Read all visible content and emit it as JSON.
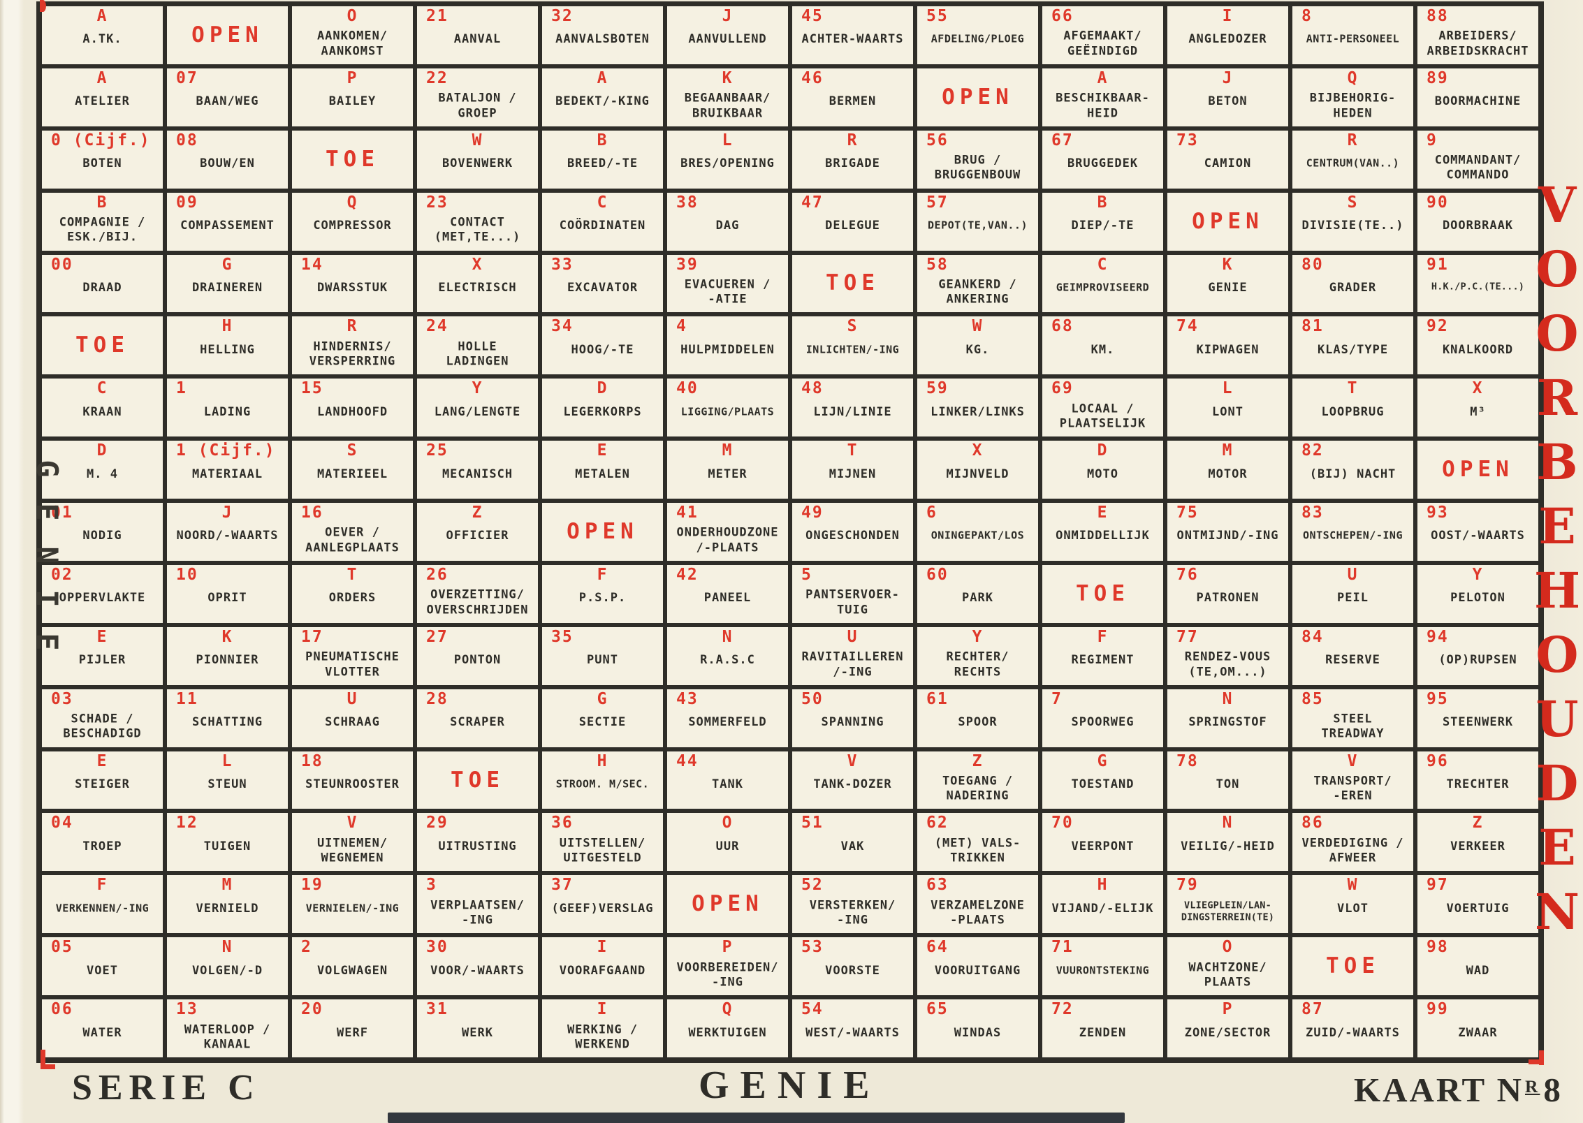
{
  "document": {
    "type_label": "code card",
    "footer": {
      "serie": "SERIE C",
      "title": "GENIE",
      "kaart_prefix": "KAART N",
      "kaart_sup": "R",
      "kaart_number": "8"
    },
    "left_margin_vertical": "GENIE",
    "right_margin_vertical": "VOORBEHOUDEN",
    "colors": {
      "paper": "#eee9d8",
      "cell": "#f5f1e2",
      "ink": "#2e2d28",
      "red": "#df382a",
      "red_deep": "#d42a1d",
      "bottom_band": "#33383e"
    }
  },
  "grid": {
    "columns": 12,
    "rows": [
      {
        "cells": [
          {
            "code": "A",
            "term": "A.TK."
          },
          {
            "special": "OPEN"
          },
          {
            "code": "O",
            "term": "AANKOMEN/\nAANKOMST"
          },
          {
            "code": "21",
            "term": "AANVAL"
          },
          {
            "code": "32",
            "term": "AANVALSBOTEN"
          },
          {
            "code": "J",
            "term": "AANVULLEND"
          },
          {
            "code": "45",
            "term": "ACHTER-WAARTS"
          },
          {
            "code": "55",
            "term": "AFDELING/PLOEG"
          },
          {
            "code": "66",
            "term": "AFGEMAAKT/\nGEËINDIGD"
          },
          {
            "code": "I",
            "term": "ANGLEDOZER"
          },
          {
            "code": "8",
            "term": "ANTI-PERSONEEL"
          },
          {
            "code": "88",
            "term": "ARBEIDERS/\nARBEIDSKRACHT"
          }
        ]
      },
      {
        "cells": [
          {
            "code": "A",
            "term": "ATELIER"
          },
          {
            "code": "07",
            "term": "BAAN/WEG"
          },
          {
            "code": "P",
            "term": "BAILEY"
          },
          {
            "code": "22",
            "term": "BATALJON /\nGROEP"
          },
          {
            "code": "A",
            "term": "BEDEKT/-KING"
          },
          {
            "code": "K",
            "term": "BEGAANBAAR/\nBRUIKBAAR"
          },
          {
            "code": "46",
            "term": "BERMEN"
          },
          {
            "special": "OPEN"
          },
          {
            "code": "A",
            "term": "BESCHIKBAAR-\nHEID"
          },
          {
            "code": "J",
            "term": "BETON"
          },
          {
            "code": "Q",
            "term": "BIJBEHORIG-\nHEDEN"
          },
          {
            "code": "89",
            "term": "BOORMACHINE"
          }
        ]
      },
      {
        "cells": [
          {
            "code": "0 (Cijf.)",
            "term": "BOTEN"
          },
          {
            "code": "08",
            "term": "BOUW/EN"
          },
          {
            "special": "TOE"
          },
          {
            "code": "W",
            "term": "BOVENWERK"
          },
          {
            "code": "B",
            "term": "BREED/-TE"
          },
          {
            "code": "L",
            "term": "BRES/OPENING"
          },
          {
            "code": "R",
            "term": "BRIGADE"
          },
          {
            "code": "56",
            "term": "BRUG /\nBRUGGENBOUW"
          },
          {
            "code": "67",
            "term": "BRUGGEDEK"
          },
          {
            "code": "73",
            "term": "CAMION"
          },
          {
            "code": "R",
            "term": "CENTRUM(VAN..)"
          },
          {
            "code": "9",
            "term": "COMMANDANT/\nCOMMANDO"
          }
        ]
      },
      {
        "cells": [
          {
            "code": "B",
            "term": "COMPAGNIE /\nESK./BIJ."
          },
          {
            "code": "09",
            "term": "COMPASSEMENT"
          },
          {
            "code": "Q",
            "term": "COMPRESSOR"
          },
          {
            "code": "23",
            "term": "CONTACT\n(MET,TE...)"
          },
          {
            "code": "C",
            "term": "COÖRDINATEN"
          },
          {
            "code": "38",
            "term": "DAG"
          },
          {
            "code": "47",
            "term": "DELEGUE"
          },
          {
            "code": "57",
            "term": "DEPOT(TE,VAN..)"
          },
          {
            "code": "B",
            "term": "DIEP/-TE"
          },
          {
            "special": "OPEN"
          },
          {
            "code": "S",
            "term": "DIVISIE(TE..)"
          },
          {
            "code": "90",
            "term": "DOORBRAAK"
          }
        ]
      },
      {
        "cells": [
          {
            "code": "00",
            "term": "DRAAD"
          },
          {
            "code": "G",
            "term": "DRAINEREN"
          },
          {
            "code": "14",
            "term": "DWARSSTUK"
          },
          {
            "code": "X",
            "term": "ELECTRISCH"
          },
          {
            "code": "33",
            "term": "EXCAVATOR"
          },
          {
            "code": "39",
            "term": "EVACUEREN /\n-ATIE"
          },
          {
            "special": "TOE"
          },
          {
            "code": "58",
            "term": "GEANKERD /\nANKERING"
          },
          {
            "code": "C",
            "term": "GEIMPROVISEERD"
          },
          {
            "code": "K",
            "term": "GENIE"
          },
          {
            "code": "80",
            "term": "GRADER"
          },
          {
            "code": "91",
            "term": "H.K./P.C.(TE...)"
          }
        ]
      },
      {
        "cells": [
          {
            "special": "TOE"
          },
          {
            "code": "H",
            "term": "HELLING"
          },
          {
            "code": "R",
            "term": "HINDERNIS/\nVERSPERRING"
          },
          {
            "code": "24",
            "term": "HOLLE\nLADINGEN"
          },
          {
            "code": "34",
            "term": "HOOG/-TE"
          },
          {
            "code": "4",
            "term": "HULPMIDDELEN"
          },
          {
            "code": "S",
            "term": "INLICHTEN/-ING"
          },
          {
            "code": "W",
            "term": "KG."
          },
          {
            "code": "68",
            "term": "KM."
          },
          {
            "code": "74",
            "term": "KIPWAGEN"
          },
          {
            "code": "81",
            "term": "KLAS/TYPE"
          },
          {
            "code": "92",
            "term": "KNALKOORD"
          }
        ]
      },
      {
        "cells": [
          {
            "code": "C",
            "term": "KRAAN"
          },
          {
            "code": "1",
            "term": "LADING"
          },
          {
            "code": "15",
            "term": "LANDHOOFD"
          },
          {
            "code": "Y",
            "term": "LANG/LENGTE"
          },
          {
            "code": "D",
            "term": "LEGERKORPS"
          },
          {
            "code": "40",
            "term": "LIGGING/PLAATS"
          },
          {
            "code": "48",
            "term": "LIJN/LINIE"
          },
          {
            "code": "59",
            "term": "LINKER/LINKS"
          },
          {
            "code": "69",
            "term": "LOCAAL /\nPLAATSELIJK"
          },
          {
            "code": "L",
            "term": "LONT"
          },
          {
            "code": "T",
            "term": "LOOPBRUG"
          },
          {
            "code": "X",
            "term": "M³"
          }
        ]
      },
      {
        "cells": [
          {
            "code": "D",
            "term": "M. 4"
          },
          {
            "code": "1 (Cijf.)",
            "term": "MATERIAAL"
          },
          {
            "code": "S",
            "term": "MATERIEEL"
          },
          {
            "code": "25",
            "term": "MECANISCH"
          },
          {
            "code": "E",
            "term": "METALEN"
          },
          {
            "code": "M",
            "term": "METER"
          },
          {
            "code": "T",
            "term": "MIJNEN"
          },
          {
            "code": "X",
            "term": "MIJNVELD"
          },
          {
            "code": "D",
            "term": "MOTO"
          },
          {
            "code": "M",
            "term": "MOTOR"
          },
          {
            "code": "82",
            "term": "(BIJ) NACHT"
          },
          {
            "special": "OPEN"
          }
        ]
      },
      {
        "cells": [
          {
            "code": "01",
            "term": "NODIG"
          },
          {
            "code": "J",
            "term": "NOORD/-WAARTS"
          },
          {
            "code": "16",
            "term": "OEVER /\nAANLEGPLAATS"
          },
          {
            "code": "Z",
            "term": "OFFICIER"
          },
          {
            "special": "OPEN"
          },
          {
            "code": "41",
            "term": "ONDERHOUDZONE\n/-PLAATS"
          },
          {
            "code": "49",
            "term": "ONGESCHONDEN"
          },
          {
            "code": "6",
            "term": "ONINGEPAKT/LOS"
          },
          {
            "code": "E",
            "term": "ONMIDDELLIJK"
          },
          {
            "code": "75",
            "term": "ONTMIJND/-ING"
          },
          {
            "code": "83",
            "term": "ONTSCHEPEN/-ING"
          },
          {
            "code": "93",
            "term": "OOST/-WAARTS"
          }
        ]
      },
      {
        "cells": [
          {
            "code": "02",
            "term": "OPPERVLAKTE"
          },
          {
            "code": "10",
            "term": "OPRIT"
          },
          {
            "code": "T",
            "term": "ORDERS"
          },
          {
            "code": "26",
            "term": "OVERZETTING/\nOVERSCHRIJDEN"
          },
          {
            "code": "F",
            "term": "P.S.P."
          },
          {
            "code": "42",
            "term": "PANEEL"
          },
          {
            "code": "5",
            "term": "PANTSERVOER-\nTUIG"
          },
          {
            "code": "60",
            "term": "PARK"
          },
          {
            "special": "TOE"
          },
          {
            "code": "76",
            "term": "PATRONEN"
          },
          {
            "code": "U",
            "term": "PEIL"
          },
          {
            "code": "Y",
            "term": "PELOTON"
          }
        ]
      },
      {
        "cells": [
          {
            "code": "E",
            "term": "PIJLER"
          },
          {
            "code": "K",
            "term": "PIONNIER"
          },
          {
            "code": "17",
            "term": "PNEUMATISCHE\nVLOTTER"
          },
          {
            "code": "27",
            "term": "PONTON"
          },
          {
            "code": "35",
            "term": "PUNT"
          },
          {
            "code": "N",
            "term": "R.A.S.C"
          },
          {
            "code": "U",
            "term": "RAVITAILLEREN\n/-ING"
          },
          {
            "code": "Y",
            "term": "RECHTER/\nRECHTS"
          },
          {
            "code": "F",
            "term": "REGIMENT"
          },
          {
            "code": "77",
            "term": "RENDEZ-VOUS\n(TE,OM...)"
          },
          {
            "code": "84",
            "term": "RESERVE"
          },
          {
            "code": "94",
            "term": "(OP)RUPSEN"
          }
        ]
      },
      {
        "cells": [
          {
            "code": "03",
            "term": "SCHADE /\nBESCHADIGD"
          },
          {
            "code": "11",
            "term": "SCHATTING"
          },
          {
            "code": "U",
            "term": "SCHRAAG"
          },
          {
            "code": "28",
            "term": "SCRAPER"
          },
          {
            "code": "G",
            "term": "SECTIE"
          },
          {
            "code": "43",
            "term": "SOMMERFELD"
          },
          {
            "code": "50",
            "term": "SPANNING"
          },
          {
            "code": "61",
            "term": "SPOOR"
          },
          {
            "code": "7",
            "term": "SPOORWEG"
          },
          {
            "code": "N",
            "term": "SPRINGSTOF"
          },
          {
            "code": "85",
            "term": "STEEL\nTREADWAY"
          },
          {
            "code": "95",
            "term": "STEENWERK"
          }
        ]
      },
      {
        "cells": [
          {
            "code": "E",
            "term": "STEIGER"
          },
          {
            "code": "L",
            "term": "STEUN"
          },
          {
            "code": "18",
            "term": "STEUNROOSTER"
          },
          {
            "special": "TOE"
          },
          {
            "code": "H",
            "term": "STROOM. M/SEC."
          },
          {
            "code": "44",
            "term": "TANK"
          },
          {
            "code": "V",
            "term": "TANK-DOZER"
          },
          {
            "code": "Z",
            "term": "TOEGANG /\nNADERING"
          },
          {
            "code": "G",
            "term": "TOESTAND"
          },
          {
            "code": "78",
            "term": "TON"
          },
          {
            "code": "V",
            "term": "TRANSPORT/\n-EREN"
          },
          {
            "code": "96",
            "term": "TRECHTER"
          }
        ]
      },
      {
        "cells": [
          {
            "code": "04",
            "term": "TROEP"
          },
          {
            "code": "12",
            "term": "TUIGEN"
          },
          {
            "code": "V",
            "term": "UITNEMEN/\nWEGNEMEN"
          },
          {
            "code": "29",
            "term": "UITRUSTING"
          },
          {
            "code": "36",
            "term": "UITSTELLEN/\nUITGESTELD"
          },
          {
            "code": "O",
            "term": "UUR"
          },
          {
            "code": "51",
            "term": "VAK"
          },
          {
            "code": "62",
            "term": "(MET) VALS-\nTRIKKEN"
          },
          {
            "code": "70",
            "term": "VEERPONT"
          },
          {
            "code": "N",
            "term": "VEILIG/-HEID"
          },
          {
            "code": "86",
            "term": "VERDEDIGING /\nAFWEER"
          },
          {
            "code": "Z",
            "term": "VERKEER"
          }
        ]
      },
      {
        "cells": [
          {
            "code": "F",
            "term": "VERKENNEN/-ING"
          },
          {
            "code": "M",
            "term": "VERNIELD"
          },
          {
            "code": "19",
            "term": "VERNIELEN/-ING"
          },
          {
            "code": "3",
            "term": "VERPLAATSEN/\n-ING"
          },
          {
            "code": "37",
            "term": "(GEEF)VERSLAG"
          },
          {
            "special": "OPEN"
          },
          {
            "code": "52",
            "term": "VERSTERKEN/\n-ING"
          },
          {
            "code": "63",
            "term": "VERZAMELZONE\n-PLAATS"
          },
          {
            "code": "H",
            "term": "VIJAND/-ELIJK"
          },
          {
            "code": "79",
            "term": "VLIEGPLEIN/LAN-\nDINGSTERREIN(TE)"
          },
          {
            "code": "W",
            "term": "VLOT"
          },
          {
            "code": "97",
            "term": "VOERTUIG"
          }
        ]
      },
      {
        "cells": [
          {
            "code": "05",
            "term": "VOET"
          },
          {
            "code": "N",
            "term": "VOLGEN/-D"
          },
          {
            "code": "2",
            "term": "VOLGWAGEN"
          },
          {
            "code": "30",
            "term": "VOOR/-WAARTS"
          },
          {
            "code": "I",
            "term": "VOORAFGAAND"
          },
          {
            "code": "P",
            "term": "VOORBEREIDEN/\n-ING"
          },
          {
            "code": "53",
            "term": "VOORSTE"
          },
          {
            "code": "64",
            "term": "VOORUITGANG"
          },
          {
            "code": "71",
            "term": "VUURONTSTEKING"
          },
          {
            "code": "O",
            "term": "WACHTZONE/\nPLAATS"
          },
          {
            "special": "TOE"
          },
          {
            "code": "98",
            "term": "WAD"
          }
        ]
      },
      {
        "cells": [
          {
            "code": "06",
            "term": "WATER"
          },
          {
            "code": "13",
            "term": "WATERLOOP /\nKANAAL"
          },
          {
            "code": "20",
            "term": "WERF"
          },
          {
            "code": "31",
            "term": "WERK"
          },
          {
            "code": "I",
            "term": "WERKING /\nWERKEND"
          },
          {
            "code": "Q",
            "term": "WERKTUIGEN"
          },
          {
            "code": "54",
            "term": "WEST/-WAARTS"
          },
          {
            "code": "65",
            "term": "WINDAS"
          },
          {
            "code": "72",
            "term": "ZENDEN"
          },
          {
            "code": "P",
            "term": "ZONE/SECTOR"
          },
          {
            "code": "87",
            "term": "ZUID/-WAARTS"
          },
          {
            "code": "99",
            "term": "ZWAAR"
          }
        ]
      }
    ]
  }
}
